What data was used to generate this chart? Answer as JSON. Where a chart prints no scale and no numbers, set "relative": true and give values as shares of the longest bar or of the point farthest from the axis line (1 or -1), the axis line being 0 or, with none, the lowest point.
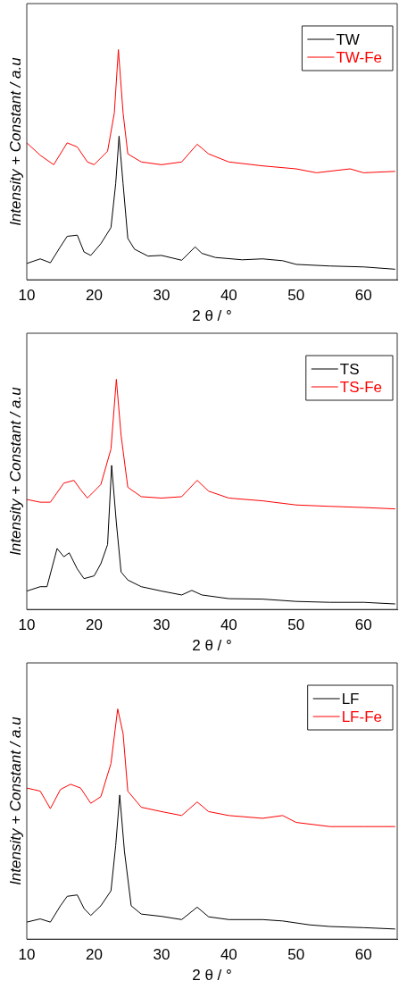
{
  "chart_data": [
    {
      "type": "line",
      "relative": true,
      "xlabel": "2 θ / °",
      "ylabel": "Intensity + Constant / a.u",
      "xlim": [
        10,
        65
      ],
      "xticks": [
        10,
        20,
        30,
        40,
        50,
        60
      ],
      "legend": "top right",
      "marker": "none",
      "series": [
        {
          "name": "TW",
          "color": "#000000",
          "x": [
            10,
            12,
            13.5,
            15,
            16,
            17.5,
            18.5,
            19.5,
            21,
            22.5,
            23.2,
            23.7,
            24.3,
            25,
            26,
            28,
            30,
            33,
            35,
            36,
            38,
            42,
            45,
            48,
            50,
            55,
            60,
            64.7
          ],
          "values": [
            0.071,
            0.091,
            0.074,
            0.144,
            0.189,
            0.194,
            0.121,
            0.106,
            0.157,
            0.227,
            0.417,
            0.624,
            0.417,
            0.18,
            0.133,
            0.103,
            0.106,
            0.085,
            0.143,
            0.115,
            0.097,
            0.087,
            0.091,
            0.083,
            0.067,
            0.06,
            0.056,
            0.046
          ]
        },
        {
          "name": "TW-Fe",
          "color": "#ff0000",
          "x": [
            10,
            12,
            14,
            16,
            17.5,
            19,
            20,
            22,
            23,
            23.6,
            24.3,
            25,
            27,
            30,
            33,
            35.3,
            37,
            40,
            45,
            50,
            53,
            58,
            60,
            64.7
          ],
          "values": [
            0.595,
            0.541,
            0.5,
            0.595,
            0.577,
            0.512,
            0.5,
            0.559,
            0.725,
            1,
            0.725,
            0.547,
            0.512,
            0.5,
            0.512,
            0.589,
            0.547,
            0.512,
            0.495,
            0.482,
            0.465,
            0.482,
            0.465,
            0.471
          ]
        }
      ]
    },
    {
      "type": "line",
      "relative": true,
      "xlabel": "2 θ / °",
      "ylabel": "Intensity + Constant / a.u",
      "xlim": [
        10,
        65
      ],
      "xticks": [
        10,
        20,
        30,
        40,
        50,
        60
      ],
      "legend": "top right",
      "marker": "none",
      "series": [
        {
          "name": "TS",
          "color": "#000000",
          "x": [
            10,
            12,
            13,
            14.5,
            15.5,
            16.3,
            17.5,
            18.5,
            20,
            21,
            22,
            22.6,
            23.3,
            24,
            25,
            27,
            30,
            33,
            34.5,
            36,
            40,
            45,
            50,
            55,
            60,
            64.7
          ],
          "values": [
            0.08,
            0.099,
            0.099,
            0.265,
            0.229,
            0.246,
            0.176,
            0.134,
            0.146,
            0.199,
            0.282,
            0.626,
            0.377,
            0.163,
            0.128,
            0.099,
            0.08,
            0.063,
            0.083,
            0.063,
            0.047,
            0.045,
            0.035,
            0.031,
            0.031,
            0.024
          ]
        },
        {
          "name": "TS-Fe",
          "color": "#ff0000",
          "x": [
            10,
            12,
            13.5,
            15.5,
            17,
            18,
            19,
            21,
            22.5,
            23.3,
            24,
            25,
            27,
            30,
            33,
            35.3,
            37,
            40,
            45,
            50,
            55,
            60,
            64.7
          ],
          "values": [
            0.478,
            0.466,
            0.466,
            0.549,
            0.561,
            0.52,
            0.484,
            0.543,
            0.697,
            1,
            0.757,
            0.531,
            0.49,
            0.484,
            0.49,
            0.561,
            0.514,
            0.484,
            0.472,
            0.454,
            0.448,
            0.443,
            0.437
          ]
        }
      ]
    },
    {
      "type": "line",
      "relative": true,
      "xlabel": "2 θ / °",
      "ylabel": "Intensity + Constant / a.u",
      "xlim": [
        10,
        65
      ],
      "xticks": [
        10,
        20,
        30,
        40,
        50,
        60
      ],
      "legend": "top right",
      "marker": "none",
      "series": [
        {
          "name": "LF",
          "color": "#000000",
          "x": [
            10,
            12,
            13.5,
            15,
            16,
            17.5,
            18.5,
            19.5,
            21,
            22.5,
            23.2,
            23.8,
            24.5,
            25.5,
            27,
            30,
            33,
            35.3,
            37,
            40,
            45,
            48,
            52,
            55,
            60,
            64.7
          ],
          "values": [
            0.074,
            0.088,
            0.074,
            0.145,
            0.186,
            0.192,
            0.133,
            0.103,
            0.145,
            0.21,
            0.406,
            0.626,
            0.382,
            0.145,
            0.109,
            0.099,
            0.085,
            0.139,
            0.097,
            0.085,
            0.085,
            0.079,
            0.062,
            0.055,
            0.05,
            0.044
          ]
        },
        {
          "name": "LF-Fe",
          "color": "#ff0000",
          "x": [
            10,
            11,
            12,
            13.5,
            15,
            16.5,
            18,
            19.5,
            21,
            22.5,
            23.5,
            24.3,
            25,
            27,
            30,
            33,
            35.3,
            37,
            40,
            45,
            48,
            50,
            55,
            60,
            64.7
          ],
          "values": [
            0.656,
            0.65,
            0.643,
            0.567,
            0.65,
            0.673,
            0.656,
            0.59,
            0.619,
            0.763,
            1,
            0.893,
            0.643,
            0.573,
            0.554,
            0.537,
            0.596,
            0.554,
            0.537,
            0.525,
            0.537,
            0.507,
            0.489,
            0.489,
            0.489
          ]
        }
      ]
    }
  ]
}
